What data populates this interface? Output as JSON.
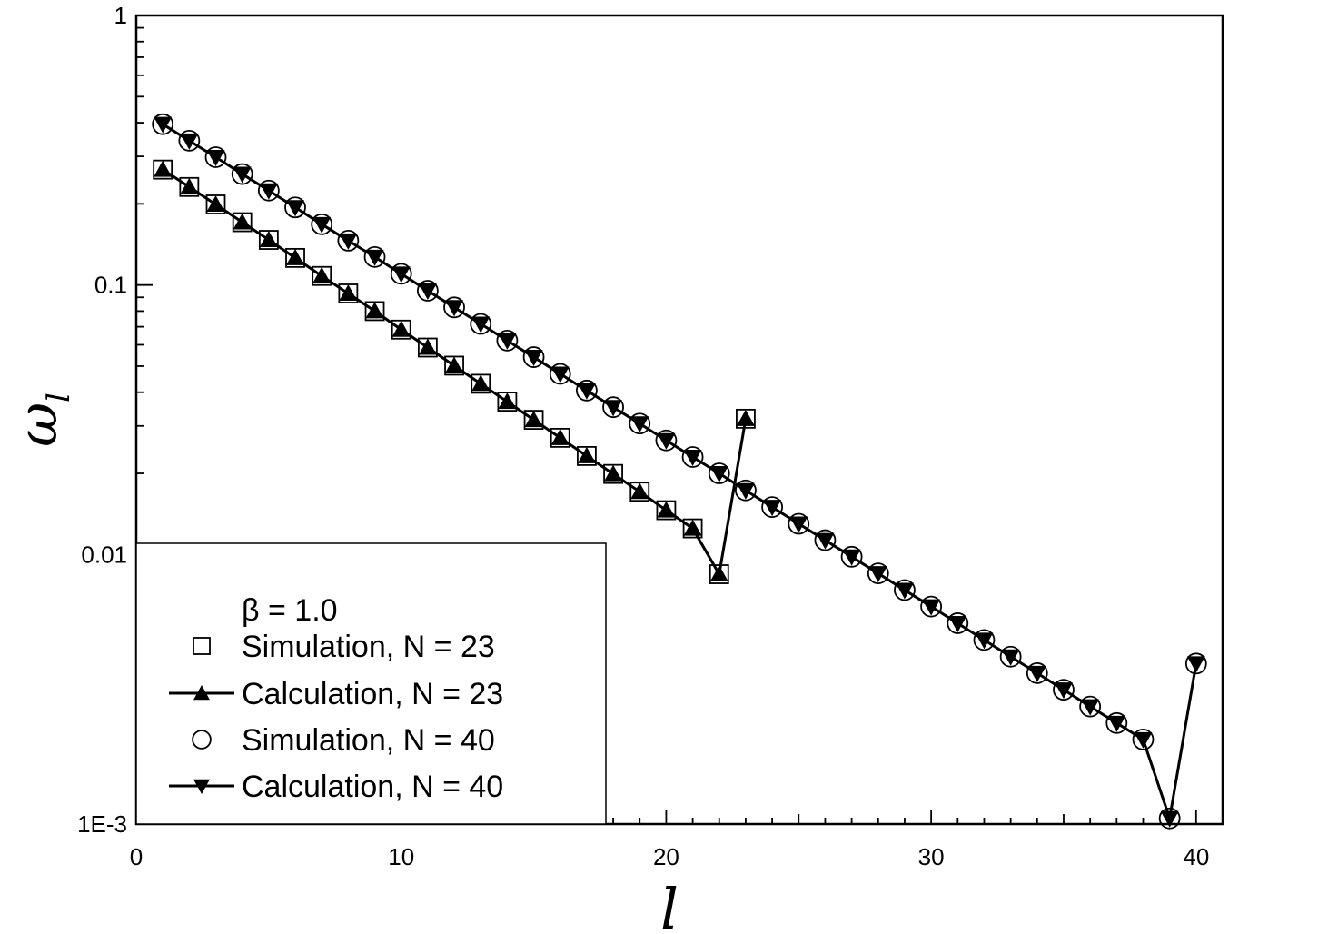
{
  "chart_data": {
    "type": "scatter",
    "xlabel": "l",
    "ylabel_main": "ω",
    "ylabel_sub": "l",
    "xlim": [
      0,
      41
    ],
    "ylim": [
      0.001,
      1
    ],
    "yscale": "log",
    "x_ticks": [
      0,
      10,
      20,
      30,
      40
    ],
    "x_tick_labels": [
      "0",
      "10",
      "20",
      "30",
      "40"
    ],
    "y_ticks": [
      0.001,
      0.01,
      0.1,
      1
    ],
    "y_tick_labels": [
      "1E-3",
      "0.01",
      "0.1",
      "1"
    ],
    "grid": false,
    "legend_position": "bottom-left",
    "legend_title": "β = 1.0",
    "series": [
      {
        "name": "Simulation, N = 23",
        "marker": "square-open",
        "line": false,
        "x": [
          1,
          2,
          3,
          4,
          5,
          6,
          7,
          8,
          9,
          10,
          11,
          12,
          13,
          14,
          15,
          16,
          17,
          18,
          19,
          20,
          21,
          22,
          23
        ],
        "y": [
          0.268,
          0.231,
          0.199,
          0.171,
          0.147,
          0.126,
          0.108,
          0.093,
          0.08,
          0.0683,
          0.0586,
          0.0502,
          0.043,
          0.0369,
          0.0316,
          0.0271,
          0.0232,
          0.0199,
          0.0171,
          0.0146,
          0.0125,
          0.00845,
          0.0319
        ]
      },
      {
        "name": "Calculation, N = 23",
        "marker": "triangle-up-filled",
        "line": true,
        "x": [
          1,
          2,
          3,
          4,
          5,
          6,
          7,
          8,
          9,
          10,
          11,
          12,
          13,
          14,
          15,
          16,
          17,
          18,
          19,
          20,
          21,
          22,
          23
        ],
        "y": [
          0.268,
          0.231,
          0.199,
          0.171,
          0.147,
          0.126,
          0.108,
          0.093,
          0.08,
          0.0683,
          0.0586,
          0.0502,
          0.043,
          0.0369,
          0.0316,
          0.0271,
          0.0232,
          0.0199,
          0.0171,
          0.0146,
          0.0125,
          0.00845,
          0.0319
        ]
      },
      {
        "name": "Simulation, N = 40",
        "marker": "circle-open",
        "line": false,
        "x": [
          1,
          2,
          3,
          4,
          5,
          6,
          7,
          8,
          9,
          10,
          11,
          12,
          13,
          14,
          15,
          16,
          17,
          18,
          19,
          20,
          21,
          22,
          23,
          24,
          25,
          26,
          27,
          28,
          29,
          30,
          31,
          32,
          33,
          34,
          35,
          36,
          37,
          38,
          39,
          40
        ],
        "y": [
          0.395,
          0.343,
          0.298,
          0.258,
          0.224,
          0.194,
          0.168,
          0.146,
          0.127,
          0.11,
          0.0952,
          0.0826,
          0.0717,
          0.0622,
          0.054,
          0.0468,
          0.0406,
          0.0352,
          0.0306,
          0.0265,
          0.023,
          0.02,
          0.0173,
          0.015,
          0.013,
          0.0113,
          0.00981,
          0.00851,
          0.00738,
          0.00641,
          0.00556,
          0.00482,
          0.00418,
          0.00363,
          0.00315,
          0.00273,
          0.00237,
          0.00206,
          0.00105,
          0.00394
        ]
      },
      {
        "name": "Calculation, N = 40",
        "marker": "triangle-down-filled",
        "line": true,
        "x": [
          1,
          2,
          3,
          4,
          5,
          6,
          7,
          8,
          9,
          10,
          11,
          12,
          13,
          14,
          15,
          16,
          17,
          18,
          19,
          20,
          21,
          22,
          23,
          24,
          25,
          26,
          27,
          28,
          29,
          30,
          31,
          32,
          33,
          34,
          35,
          36,
          37,
          38,
          39,
          40
        ],
        "y": [
          0.395,
          0.343,
          0.298,
          0.258,
          0.224,
          0.194,
          0.168,
          0.146,
          0.127,
          0.11,
          0.0952,
          0.0826,
          0.0717,
          0.0622,
          0.054,
          0.0468,
          0.0406,
          0.0352,
          0.0306,
          0.0265,
          0.023,
          0.02,
          0.0173,
          0.015,
          0.013,
          0.0113,
          0.00981,
          0.00851,
          0.00738,
          0.00641,
          0.00556,
          0.00482,
          0.00418,
          0.00363,
          0.00315,
          0.00273,
          0.00237,
          0.00206,
          0.00105,
          0.00394
        ]
      }
    ]
  }
}
